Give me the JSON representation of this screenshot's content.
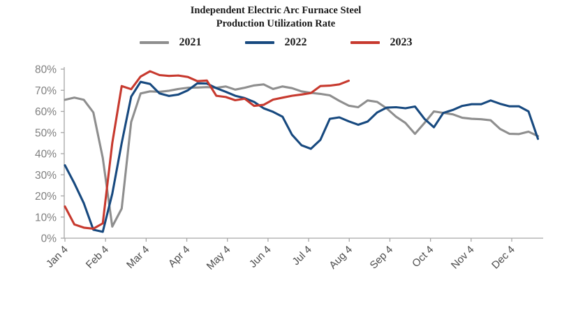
{
  "title": {
    "line1": "Independent Electric Arc Furnace Steel",
    "line2": "Production Utilization Rate"
  },
  "chart_data": {
    "type": "line",
    "title": "Independent Electric Arc Furnace Steel Production Utilization Rate",
    "unit": "%",
    "x_frequency": "weekly",
    "x_axis": {
      "tick_labels": [
        "Jan 4",
        "Feb 4",
        "Mar 4",
        "Apr 4",
        "May 4",
        "Jun 4",
        "Jul 4",
        "Aug 4",
        "Sep 4",
        "Oct 4",
        "Nov 4",
        "Dec 4"
      ]
    },
    "y_axis": {
      "min": 0,
      "max": 80,
      "step": 10,
      "tick_labels": [
        "0%",
        "10%",
        "20%",
        "30%",
        "40%",
        "50%",
        "60%",
        "70%",
        "80%"
      ]
    },
    "grid": "off",
    "legend_position": "top",
    "series": [
      {
        "name": "2021",
        "color": "#8e8e8e",
        "values": [
          65.5,
          66.5,
          65.5,
          59.5,
          38,
          5.5,
          14,
          55,
          68.5,
          69.5,
          69.3,
          69.8,
          70.6,
          71.2,
          71.3,
          71.5,
          71.2,
          71.8,
          70.3,
          71.2,
          72.3,
          72.8,
          70.6,
          71.8,
          71,
          69.5,
          68.8,
          68.3,
          67.6,
          65,
          62.7,
          62,
          65.2,
          64.5,
          61.5,
          57.5,
          54.5,
          49.4,
          54.5,
          60,
          59.3,
          58.6,
          57,
          56.5,
          56.3,
          55.8,
          51.7,
          49.4,
          49.3,
          50.4,
          48.3
        ]
      },
      {
        "name": "2022",
        "color": "#17497f",
        "values": [
          34.5,
          26,
          16.5,
          4,
          3,
          21,
          45,
          67,
          74,
          73,
          68.5,
          67.3,
          68,
          70,
          73.3,
          73.2,
          71,
          69.3,
          67.4,
          66.3,
          64.5,
          61.5,
          59.8,
          57.5,
          49,
          44,
          42.3,
          46.5,
          56.5,
          57.2,
          55.3,
          53.7,
          55.2,
          59.5,
          61.8,
          62,
          61.5,
          62.3,
          56.5,
          52.5,
          59.3,
          60.7,
          62.6,
          63.4,
          63.4,
          65.2,
          63.6,
          62.4,
          62.4,
          60,
          47
        ]
      },
      {
        "name": "2023",
        "color": "#c7392e",
        "values": [
          15,
          6.5,
          5,
          4.5,
          7,
          45,
          72,
          70.5,
          76.5,
          79,
          77.2,
          76.8,
          77,
          76.3,
          74.3,
          74.6,
          67.4,
          66.8,
          65.3,
          66,
          62.6,
          63.1,
          65.6,
          66.5,
          67.4,
          68,
          68.7,
          72,
          72.2,
          72.8,
          74.5
        ]
      }
    ]
  }
}
